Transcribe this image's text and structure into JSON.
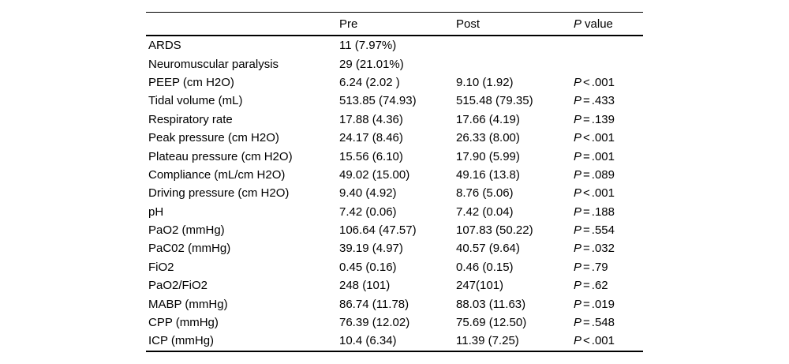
{
  "table": {
    "header": {
      "label": "",
      "pre": "Pre",
      "post": "Post",
      "p_italic": "P",
      "p_rest": "value"
    },
    "rows": [
      {
        "label": "ARDS",
        "pre": "11 (7.97%)",
        "post": "",
        "p_label": "",
        "p_op": "",
        "p_num": ""
      },
      {
        "label": "Neuromuscular paralysis",
        "pre": "29 (21.01%)",
        "post": "",
        "p_label": "",
        "p_op": "",
        "p_num": ""
      },
      {
        "label": "PEEP (cm H2O)",
        "pre": "6.24 (2.02 )",
        "post": "9.10 (1.92)",
        "p_label": "P",
        "p_op": "<",
        "p_num": ".001"
      },
      {
        "label": "Tidal volume (mL)",
        "pre": "513.85 (74.93)",
        "post": "515.48 (79.35)",
        "p_label": "P",
        "p_op": "=",
        "p_num": ".433"
      },
      {
        "label": "Respiratory rate",
        "pre": "17.88 (4.36)",
        "post": "17.66 (4.19)",
        "p_label": "P",
        "p_op": "=",
        "p_num": ".139"
      },
      {
        "label": "Peak pressure (cm H2O)",
        "pre": "24.17 (8.46)",
        "post": "26.33 (8.00)",
        "p_label": "P",
        "p_op": "<",
        "p_num": ".001"
      },
      {
        "label": "Plateau pressure (cm H2O)",
        "pre": "15.56 (6.10)",
        "post": "17.90 (5.99)",
        "p_label": "P",
        "p_op": "=",
        "p_num": ".001"
      },
      {
        "label": "Compliance (mL/cm H2O)",
        "pre": "49.02 (15.00)",
        "post": "49.16 (13.8)",
        "p_label": "P",
        "p_op": "=",
        "p_num": ".089"
      },
      {
        "label": "Driving pressure (cm H2O)",
        "pre": "9.40 (4.92)",
        "post": "8.76 (5.06)",
        "p_label": "P",
        "p_op": "<",
        "p_num": ".001"
      },
      {
        "label": "pH",
        "pre": "7.42 (0.06)",
        "post": "7.42 (0.04)",
        "p_label": "P",
        "p_op": "=",
        "p_num": ".188"
      },
      {
        "label": "PaO2 (mmHg)",
        "pre": "106.64 (47.57)",
        "post": "107.83 (50.22)",
        "p_label": "P",
        "p_op": "=",
        "p_num": ".554"
      },
      {
        "label": "PaC02 (mmHg)",
        "pre": "39.19 (4.97)",
        "post": "40.57 (9.64)",
        "p_label": "P",
        "p_op": "=",
        "p_num": ".032"
      },
      {
        "label": "FiO2",
        "pre": "0.45 (0.16)",
        "post": "0.46 (0.15)",
        "p_label": "P",
        "p_op": "=",
        "p_num": ".79"
      },
      {
        "label": "PaO2/FiO2",
        "pre": "248 (101)",
        "post": "247(101)",
        "p_label": "P",
        "p_op": "=",
        "p_num": ".62"
      },
      {
        "label": "MABP (mmHg)",
        "pre": "86.74 (11.78)",
        "post": "88.03 (11.63)",
        "p_label": "P",
        "p_op": "=",
        "p_num": ".019"
      },
      {
        "label": "CPP (mmHg)",
        "pre": "76.39 (12.02)",
        "post": "75.69 (12.50)",
        "p_label": "P",
        "p_op": "=",
        "p_num": ".548"
      },
      {
        "label": "ICP (mmHg)",
        "pre": "10.4 (6.34)",
        "post": "11.39 (7.25)",
        "p_label": "P",
        "p_op": "<",
        "p_num": ".001"
      }
    ],
    "colors": {
      "text": "#000000",
      "background": "#ffffff",
      "rule": "#000000"
    }
  }
}
